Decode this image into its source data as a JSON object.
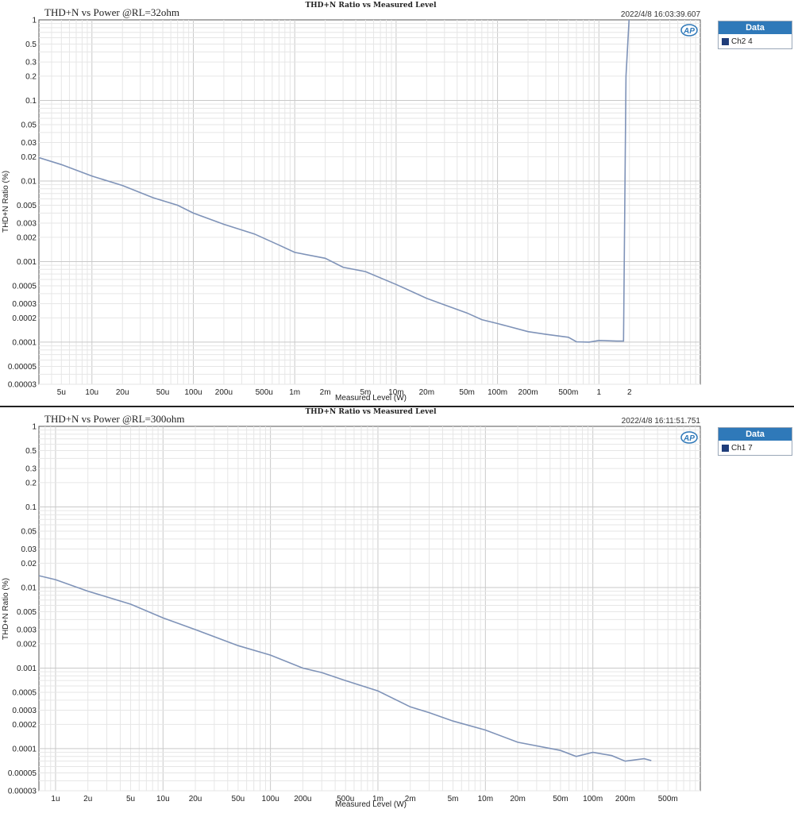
{
  "chart_data": [
    {
      "type": "line",
      "title": "THD+N Ratio vs Measured Level",
      "subtitle": "THD+N  vs Power @RL=32ohm",
      "timestamp": "2022/4/8 16:03:39.607",
      "xlabel": "Measured Level (W)",
      "ylabel": "THD+N Ratio (%)",
      "x_scale": "log",
      "y_scale": "log",
      "xlim": [
        3e-06,
        10
      ],
      "ylim": [
        3e-05,
        1
      ],
      "x_ticks": [
        {
          "v": 5e-06,
          "label": "5u"
        },
        {
          "v": 1e-05,
          "label": "10u"
        },
        {
          "v": 2e-05,
          "label": "20u"
        },
        {
          "v": 5e-05,
          "label": "50u"
        },
        {
          "v": 0.0001,
          "label": "100u"
        },
        {
          "v": 0.0002,
          "label": "200u"
        },
        {
          "v": 0.0005,
          "label": "500u"
        },
        {
          "v": 0.001,
          "label": "1m"
        },
        {
          "v": 0.002,
          "label": "2m"
        },
        {
          "v": 0.005,
          "label": "5m"
        },
        {
          "v": 0.01,
          "label": "10m"
        },
        {
          "v": 0.02,
          "label": "20m"
        },
        {
          "v": 0.05,
          "label": "50m"
        },
        {
          "v": 0.1,
          "label": "100m"
        },
        {
          "v": 0.2,
          "label": "200m"
        },
        {
          "v": 0.5,
          "label": "500m"
        },
        {
          "v": 1,
          "label": "1"
        },
        {
          "v": 2,
          "label": "2"
        }
      ],
      "y_ticks": [
        {
          "v": 1,
          "label": "1"
        },
        {
          "v": 0.5,
          "label": "0.5"
        },
        {
          "v": 0.3,
          "label": "0.3"
        },
        {
          "v": 0.2,
          "label": "0.2"
        },
        {
          "v": 0.1,
          "label": "0.1"
        },
        {
          "v": 0.05,
          "label": "0.05"
        },
        {
          "v": 0.03,
          "label": "0.03"
        },
        {
          "v": 0.02,
          "label": "0.02"
        },
        {
          "v": 0.01,
          "label": "0.01"
        },
        {
          "v": 0.005,
          "label": "0.005"
        },
        {
          "v": 0.003,
          "label": "0.003"
        },
        {
          "v": 0.002,
          "label": "0.002"
        },
        {
          "v": 0.001,
          "label": "0.001"
        },
        {
          "v": 0.0005,
          "label": "0.0005"
        },
        {
          "v": 0.0003,
          "label": "0.0003"
        },
        {
          "v": 0.0002,
          "label": "0.0002"
        },
        {
          "v": 0.0001,
          "label": "0.0001"
        },
        {
          "v": 5e-05,
          "label": "0.00005"
        },
        {
          "v": 3e-05,
          "label": "0.00003"
        }
      ],
      "legend_title": "Data",
      "legend_position": "right",
      "series": [
        {
          "name": "Ch2",
          "name_suffix": "4",
          "color": "#7f93b8",
          "points": [
            [
              3e-06,
              0.0195
            ],
            [
              5e-06,
              0.016
            ],
            [
              1e-05,
              0.0115
            ],
            [
              2e-05,
              0.0088
            ],
            [
              4e-05,
              0.0062
            ],
            [
              7e-05,
              0.005
            ],
            [
              0.0001,
              0.004
            ],
            [
              0.0002,
              0.0029
            ],
            [
              0.0004,
              0.0022
            ],
            [
              0.0007,
              0.0016
            ],
            [
              0.001,
              0.0013
            ],
            [
              0.002,
              0.0011
            ],
            [
              0.003,
              0.00085
            ],
            [
              0.005,
              0.00075
            ],
            [
              0.01,
              0.00052
            ],
            [
              0.02,
              0.00035
            ],
            [
              0.03,
              0.00029
            ],
            [
              0.05,
              0.00023
            ],
            [
              0.07,
              0.00019
            ],
            [
              0.1,
              0.00017
            ],
            [
              0.2,
              0.000135
            ],
            [
              0.3,
              0.000125
            ],
            [
              0.5,
              0.000115
            ],
            [
              0.6,
              0.000101
            ],
            [
              0.8,
              0.0001
            ],
            [
              1,
              0.000105
            ],
            [
              1.5,
              0.000103
            ],
            [
              1.75,
              0.000103
            ],
            [
              1.85,
              0.2
            ],
            [
              2,
              1.2
            ]
          ]
        }
      ],
      "logo_text": "AP"
    },
    {
      "type": "line",
      "title": "THD+N Ratio vs Measured Level",
      "subtitle": "THD+N  vs Power @RL=300ohm",
      "timestamp": "2022/4/8 16:11:51.751",
      "xlabel": "Measured Level (W)",
      "ylabel": "THD+N Ratio (%)",
      "x_scale": "log",
      "y_scale": "log",
      "xlim": [
        7e-07,
        1
      ],
      "ylim": [
        3e-05,
        1
      ],
      "x_ticks": [
        {
          "v": 1e-06,
          "label": "1u"
        },
        {
          "v": 2e-06,
          "label": "2u"
        },
        {
          "v": 5e-06,
          "label": "5u"
        },
        {
          "v": 1e-05,
          "label": "10u"
        },
        {
          "v": 2e-05,
          "label": "20u"
        },
        {
          "v": 5e-05,
          "label": "50u"
        },
        {
          "v": 0.0001,
          "label": "100u"
        },
        {
          "v": 0.0002,
          "label": "200u"
        },
        {
          "v": 0.0005,
          "label": "500u"
        },
        {
          "v": 0.001,
          "label": "1m"
        },
        {
          "v": 0.002,
          "label": "2m"
        },
        {
          "v": 0.005,
          "label": "5m"
        },
        {
          "v": 0.01,
          "label": "10m"
        },
        {
          "v": 0.02,
          "label": "20m"
        },
        {
          "v": 0.05,
          "label": "50m"
        },
        {
          "v": 0.1,
          "label": "100m"
        },
        {
          "v": 0.2,
          "label": "200m"
        },
        {
          "v": 0.5,
          "label": "500m"
        }
      ],
      "y_ticks": [
        {
          "v": 1,
          "label": "1"
        },
        {
          "v": 0.5,
          "label": "0.5"
        },
        {
          "v": 0.3,
          "label": "0.3"
        },
        {
          "v": 0.2,
          "label": "0.2"
        },
        {
          "v": 0.1,
          "label": "0.1"
        },
        {
          "v": 0.05,
          "label": "0.05"
        },
        {
          "v": 0.03,
          "label": "0.03"
        },
        {
          "v": 0.02,
          "label": "0.02"
        },
        {
          "v": 0.01,
          "label": "0.01"
        },
        {
          "v": 0.005,
          "label": "0.005"
        },
        {
          "v": 0.003,
          "label": "0.003"
        },
        {
          "v": 0.002,
          "label": "0.002"
        },
        {
          "v": 0.001,
          "label": "0.001"
        },
        {
          "v": 0.0005,
          "label": "0.0005"
        },
        {
          "v": 0.0003,
          "label": "0.0003"
        },
        {
          "v": 0.0002,
          "label": "0.0002"
        },
        {
          "v": 0.0001,
          "label": "0.0001"
        },
        {
          "v": 5e-05,
          "label": "0.00005"
        },
        {
          "v": 3e-05,
          "label": "0.00003"
        }
      ],
      "legend_title": "Data",
      "legend_position": "right",
      "series": [
        {
          "name": "Ch1",
          "name_suffix": "7",
          "color": "#7f93b8",
          "points": [
            [
              7e-07,
              0.014
            ],
            [
              1e-06,
              0.0125
            ],
            [
              2e-06,
              0.009
            ],
            [
              5e-06,
              0.0062
            ],
            [
              1e-05,
              0.0042
            ],
            [
              2e-05,
              0.003
            ],
            [
              5e-05,
              0.0019
            ],
            [
              0.0001,
              0.00145
            ],
            [
              0.0002,
              0.001
            ],
            [
              0.0003,
              0.00088
            ],
            [
              0.0005,
              0.0007
            ],
            [
              0.001,
              0.00052
            ],
            [
              0.002,
              0.00033
            ],
            [
              0.003,
              0.00028
            ],
            [
              0.005,
              0.00022
            ],
            [
              0.01,
              0.00017
            ],
            [
              0.02,
              0.00012
            ],
            [
              0.05,
              9.5e-05
            ],
            [
              0.07,
              8e-05
            ],
            [
              0.1,
              9e-05
            ],
            [
              0.15,
              8.2e-05
            ],
            [
              0.2,
              7e-05
            ],
            [
              0.3,
              7.5e-05
            ],
            [
              0.35,
              7.1e-05
            ]
          ]
        }
      ],
      "logo_text": "AP"
    }
  ]
}
